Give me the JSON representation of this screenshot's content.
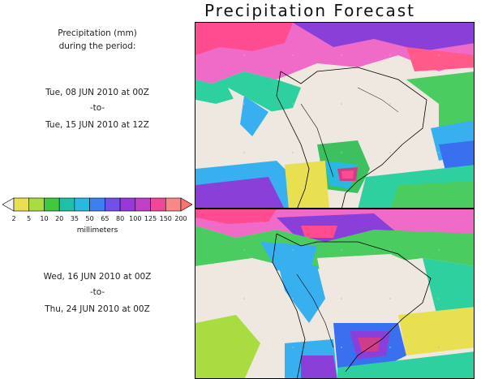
{
  "title": "Precipitation Forecast",
  "header": {
    "line1": "Precipitation (mm)",
    "line2": "during the period:"
  },
  "period1": {
    "start": "Tue, 08 JUN 2010 at 00Z",
    "sep": "-to-",
    "end": "Tue, 15 JUN 2010 at 12Z"
  },
  "period2": {
    "start": "Wed, 16 JUN 2010 at 00Z",
    "sep": "-to-",
    "end": "Thu, 24 JUN 2010 at 00Z"
  },
  "legend": {
    "units": "millimeters",
    "labels": [
      "2",
      "5",
      "10",
      "20",
      "35",
      "50",
      "65",
      "80",
      "100",
      "125",
      "150",
      "200"
    ],
    "colors": [
      "#e8e050",
      "#a8dc40",
      "#40c840",
      "#20c0a8",
      "#28b8e0",
      "#3c80f0",
      "#7050e8",
      "#9838d8",
      "#c040c8",
      "#f04898",
      "#f88888"
    ],
    "low_arrow_color": "#f4f4f4",
    "high_arrow_color": "#ff7070"
  },
  "maps": [
    {
      "label": "map-period-1"
    },
    {
      "label": "map-period-2"
    }
  ]
}
